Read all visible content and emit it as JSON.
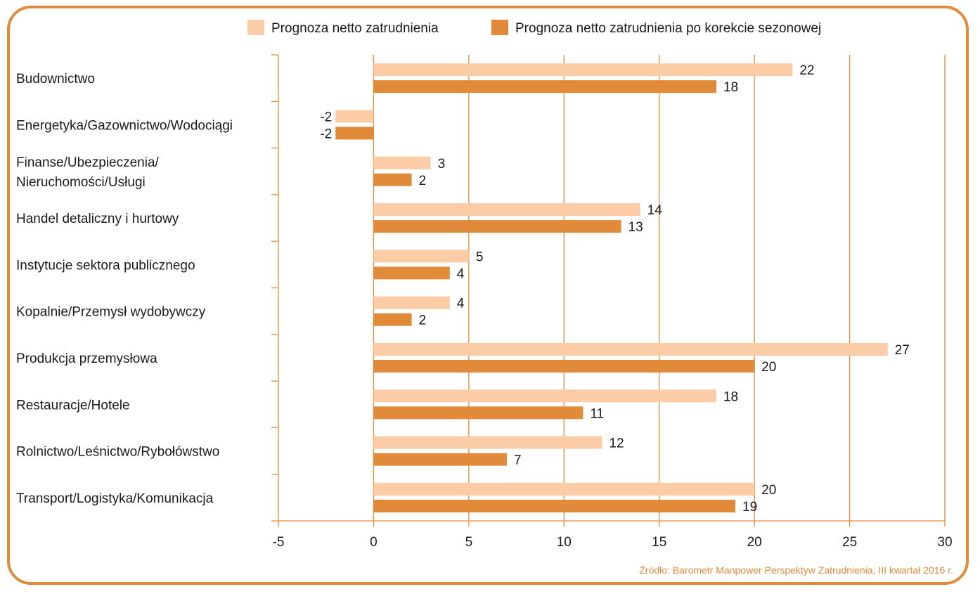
{
  "chart_data": {
    "type": "bar",
    "orientation": "horizontal",
    "categories": [
      [
        "Budownictwo"
      ],
      [
        "Energetyka/Gazownictwo/Wodociągi"
      ],
      [
        "Finanse/Ubezpieczenia/",
        "Nieruchomości/Usługi"
      ],
      [
        "Handel detaliczny i hurtowy"
      ],
      [
        "Instytucje sektora publicznego"
      ],
      [
        "Kopalnie/Przemysł wydobywczy"
      ],
      [
        "Produkcja przemysłowa"
      ],
      [
        "Restauracje/Hotele"
      ],
      [
        "Rolnictwo/Leśnictwo/Rybołówstwo"
      ],
      [
        "Transport/Logistyka/Komunikacja"
      ]
    ],
    "series": [
      {
        "name": "Prognoza netto zatrudnienia",
        "color": "#fbcca5",
        "values": [
          22,
          -2,
          3,
          14,
          5,
          4,
          27,
          18,
          12,
          20
        ]
      },
      {
        "name": "Prognoza netto zatrudnienia po korekcie sezonowej",
        "color": "#e08a3a",
        "values": [
          18,
          -2,
          2,
          13,
          4,
          2,
          20,
          11,
          7,
          19
        ]
      }
    ],
    "xlim": [
      -5,
      30
    ],
    "xticks": [
      "-5",
      "0",
      "5",
      "10",
      "15",
      "20",
      "25",
      "30"
    ],
    "grid": true,
    "legend": "top",
    "axis_color": "#e08a3a"
  },
  "source": "Źródło: Barometr Manpower Perspektyw Zatrudnienia, III kwartał 2016 r."
}
